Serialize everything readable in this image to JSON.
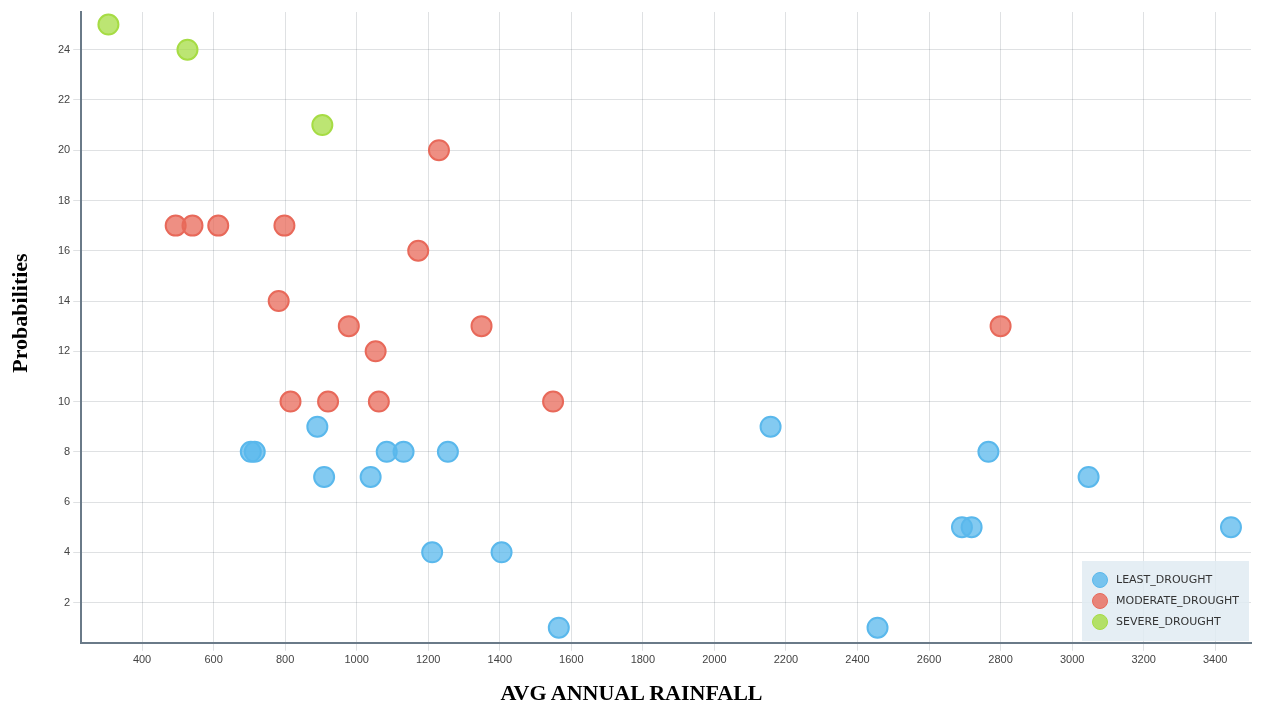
{
  "chart_data": {
    "type": "scatter",
    "xlabel": "AVG ANNUAL RAINFALL",
    "ylabel": "Probabilities",
    "xlim": [
      230,
      3500
    ],
    "ylim": [
      0.4,
      25.5
    ],
    "xticks": [
      400,
      600,
      800,
      1000,
      1200,
      1400,
      1600,
      1800,
      2000,
      2200,
      2400,
      2600,
      2800,
      3000,
      3200,
      3400
    ],
    "yticks": [
      2,
      4,
      6,
      8,
      10,
      12,
      14,
      16,
      18,
      20,
      22,
      24
    ],
    "grid": true,
    "legend": "bottom right",
    "marker": "circle",
    "series": [
      {
        "name": "LEAST_DROUGHT",
        "color": "#5ab8ec",
        "x": [
          890,
          704,
          715,
          1084,
          1131,
          1255,
          909,
          1039,
          1211,
          1405,
          1565,
          2157,
          2456,
          2692,
          2719,
          2766,
          3046,
          3444
        ],
        "values": [
          9,
          8,
          8,
          8,
          8,
          8,
          7,
          7,
          4,
          4,
          1,
          9,
          1,
          5,
          5,
          8,
          7,
          5
        ]
      },
      {
        "name": "MODERATE_DROUGHT",
        "color": "#e8695a",
        "x": [
          1230,
          494,
          541,
          613,
          798,
          1172,
          782,
          978,
          1349,
          1053,
          815,
          920,
          1062,
          1549,
          2800
        ],
        "values": [
          20,
          17,
          17,
          17,
          17,
          16,
          14,
          13,
          13,
          12,
          10,
          10,
          10,
          10,
          13
        ]
      },
      {
        "name": "SEVERE_DROUGHT",
        "color": "#a6dc44",
        "x": [
          306,
          527,
          904
        ],
        "values": [
          25,
          24,
          21
        ]
      }
    ]
  }
}
